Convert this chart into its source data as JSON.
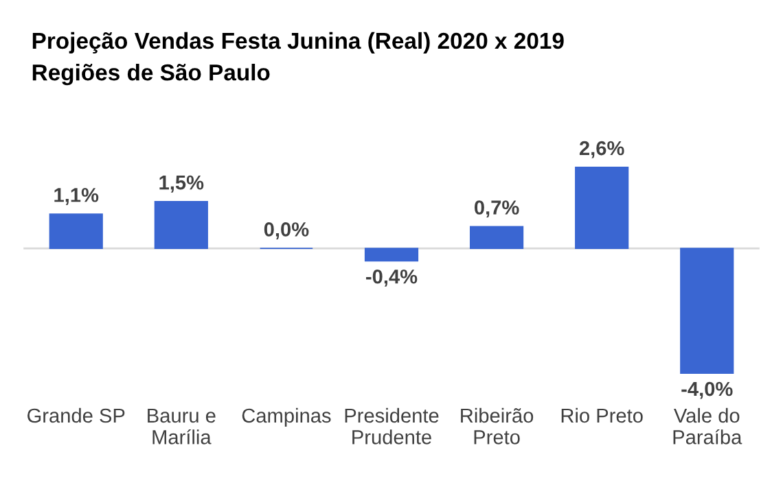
{
  "chart_data": {
    "type": "bar",
    "title": "Projeção Vendas Festa Junina (Real) 2020 x 2019",
    "subtitle": "Regiões de São Paulo",
    "categories": [
      "Grande SP",
      "Bauru e\nMarília",
      "Campinas",
      "Presidente\nPrudente",
      "Ribeirão\nPreto",
      "Rio Preto",
      "Vale do\nParaíba"
    ],
    "values": [
      1.1,
      1.5,
      0.0,
      -0.4,
      0.7,
      2.6,
      -4.0
    ],
    "value_labels": [
      "1,1%",
      "1,5%",
      "0,0%",
      "-0,4%",
      "0,7%",
      "2,6%",
      "-4,0%"
    ],
    "color": "#3a66d2",
    "grid": false,
    "legend": false
  }
}
